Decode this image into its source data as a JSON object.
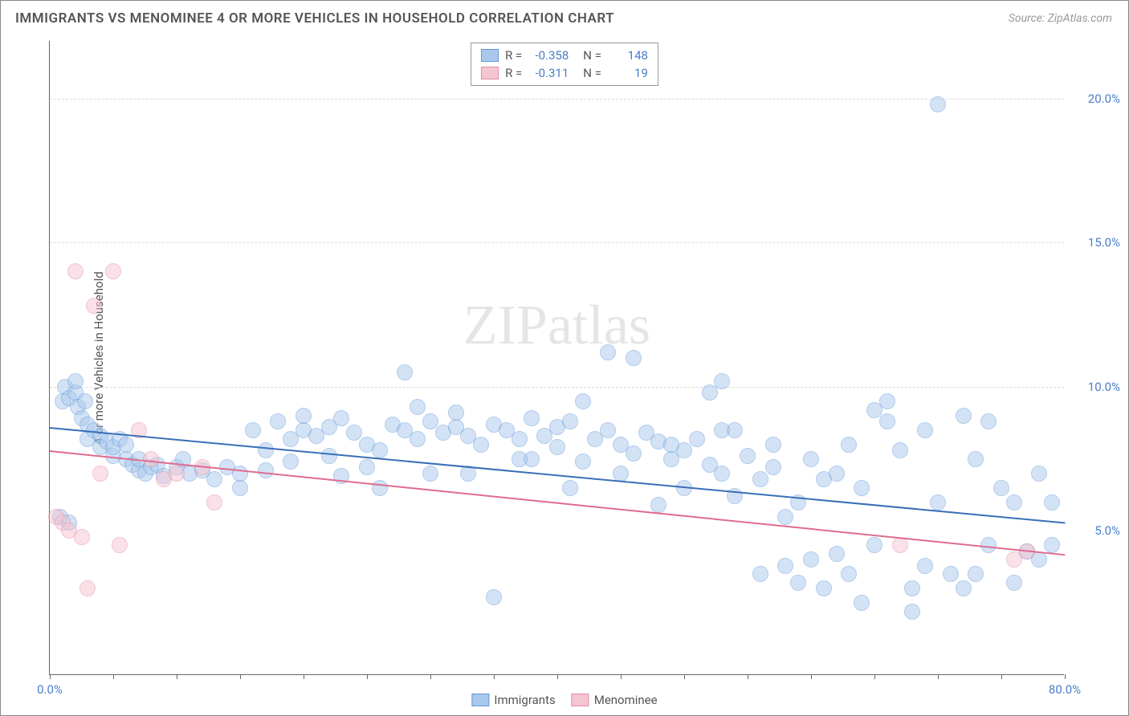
{
  "title": "IMMIGRANTS VS MENOMINEE 4 OR MORE VEHICLES IN HOUSEHOLD CORRELATION CHART",
  "source": "Source: ZipAtlas.com",
  "ylabel": "4 or more Vehicles in Household",
  "watermark": "ZIPatlas",
  "chart": {
    "type": "scatter",
    "xlim": [
      0,
      80
    ],
    "ylim": [
      0,
      22
    ],
    "background_color": "#ffffff",
    "grid_color": "#dddddd",
    "axis_color": "#666666",
    "tick_label_color": "#4a7ec9",
    "tick_fontsize": 15,
    "yticks": [
      {
        "value": 5,
        "label": "5.0%",
        "grid": false
      },
      {
        "value": 10,
        "label": "10.0%",
        "grid": true
      },
      {
        "value": 15,
        "label": "15.0%",
        "grid": true
      },
      {
        "value": 20,
        "label": "20.0%",
        "grid": true
      }
    ],
    "xticks_major": [
      0,
      40,
      80
    ],
    "xtick_labels": [
      {
        "value": 0,
        "label": "0.0%"
      },
      {
        "value": 80,
        "label": "80.0%"
      }
    ],
    "xticks_minor_step": 5,
    "marker_radius": 10,
    "marker_opacity": 0.5,
    "marker_stroke_width": 1
  },
  "series": [
    {
      "name": "Immigrants",
      "R": "-0.358",
      "N": "148",
      "fill_color": "#a8c8ec",
      "stroke_color": "#6799d8",
      "trend_color": "#3a6fb7",
      "trend": {
        "x1": 0,
        "y1": 8.6,
        "x2": 80,
        "y2": 5.3
      },
      "points": [
        [
          1,
          9.5
        ],
        [
          1.2,
          10
        ],
        [
          1.5,
          9.6
        ],
        [
          2,
          9.8
        ],
        [
          2,
          10.2
        ],
        [
          2.2,
          9.3
        ],
        [
          2.5,
          8.9
        ],
        [
          2.8,
          9.5
        ],
        [
          3,
          8.7
        ],
        [
          3,
          8.2
        ],
        [
          3.5,
          8.5
        ],
        [
          4,
          8.3
        ],
        [
          4,
          7.9
        ],
        [
          4.5,
          8.1
        ],
        [
          5,
          7.6
        ],
        [
          5,
          7.9
        ],
        [
          5.5,
          8.2
        ],
        [
          6,
          7.5
        ],
        [
          6,
          8.0
        ],
        [
          6.5,
          7.3
        ],
        [
          7,
          7.1
        ],
        [
          7,
          7.5
        ],
        [
          7.5,
          7.0
        ],
        [
          8,
          7.2
        ],
        [
          8.5,
          7.3
        ],
        [
          9,
          6.9
        ],
        [
          10,
          7.2
        ],
        [
          10.5,
          7.5
        ],
        [
          11,
          7.0
        ],
        [
          12,
          7.1
        ],
        [
          13,
          6.8
        ],
        [
          14,
          7.2
        ],
        [
          15,
          6.5
        ],
        [
          15,
          7.0
        ],
        [
          16,
          8.5
        ],
        [
          17,
          7.8
        ],
        [
          17,
          7.1
        ],
        [
          18,
          8.8
        ],
        [
          19,
          8.2
        ],
        [
          19,
          7.4
        ],
        [
          20,
          8.5
        ],
        [
          20,
          9.0
        ],
        [
          21,
          8.3
        ],
        [
          22,
          7.6
        ],
        [
          22,
          8.6
        ],
        [
          23,
          8.9
        ],
        [
          24,
          8.4
        ],
        [
          25,
          8.0
        ],
        [
          25,
          7.2
        ],
        [
          26,
          7.8
        ],
        [
          27,
          8.7
        ],
        [
          28,
          8.5
        ],
        [
          28,
          10.5
        ],
        [
          29,
          8.2
        ],
        [
          30,
          8.8
        ],
        [
          30,
          7.0
        ],
        [
          31,
          8.4
        ],
        [
          32,
          8.6
        ],
        [
          32,
          9.1
        ],
        [
          33,
          8.3
        ],
        [
          34,
          8.0
        ],
        [
          35,
          8.7
        ],
        [
          35,
          2.7
        ],
        [
          36,
          8.5
        ],
        [
          37,
          8.2
        ],
        [
          38,
          8.9
        ],
        [
          38,
          7.5
        ],
        [
          39,
          8.3
        ],
        [
          40,
          8.6
        ],
        [
          40,
          7.9
        ],
        [
          41,
          8.8
        ],
        [
          42,
          7.4
        ],
        [
          42,
          9.5
        ],
        [
          43,
          8.2
        ],
        [
          44,
          8.5
        ],
        [
          44,
          11.2
        ],
        [
          45,
          8.0
        ],
        [
          46,
          7.7
        ],
        [
          46,
          11.0
        ],
        [
          47,
          8.4
        ],
        [
          48,
          8.1
        ],
        [
          48,
          5.9
        ],
        [
          49,
          7.5
        ],
        [
          50,
          7.8
        ],
        [
          50,
          6.5
        ],
        [
          51,
          8.2
        ],
        [
          52,
          7.3
        ],
        [
          53,
          7.0
        ],
        [
          54,
          8.5
        ],
        [
          54,
          6.2
        ],
        [
          55,
          7.6
        ],
        [
          56,
          6.8
        ],
        [
          56,
          3.5
        ],
        [
          57,
          7.2
        ],
        [
          58,
          3.8
        ],
        [
          58,
          5.5
        ],
        [
          59,
          3.2
        ],
        [
          60,
          4.0
        ],
        [
          60,
          7.5
        ],
        [
          61,
          6.8
        ],
        [
          62,
          7.0
        ],
        [
          62,
          4.2
        ],
        [
          63,
          3.5
        ],
        [
          64,
          6.5
        ],
        [
          64,
          2.5
        ],
        [
          65,
          9.2
        ],
        [
          66,
          8.8
        ],
        [
          66,
          9.5
        ],
        [
          67,
          7.8
        ],
        [
          68,
          3.0
        ],
        [
          68,
          2.2
        ],
        [
          69,
          8.5
        ],
        [
          70,
          6.0
        ],
        [
          70,
          19.8
        ],
        [
          71,
          3.5
        ],
        [
          72,
          9.0
        ],
        [
          72,
          3.0
        ],
        [
          73,
          7.5
        ],
        [
          74,
          8.8
        ],
        [
          74,
          4.5
        ],
        [
          75,
          6.5
        ],
        [
          76,
          3.2
        ],
        [
          76,
          6.0
        ],
        [
          77,
          4.3
        ],
        [
          78,
          4.0
        ],
        [
          78,
          7.0
        ],
        [
          79,
          6.0
        ],
        [
          79,
          4.5
        ],
        [
          23,
          6.9
        ],
        [
          26,
          6.5
        ],
        [
          29,
          9.3
        ],
        [
          33,
          7.0
        ],
        [
          37,
          7.5
        ],
        [
          41,
          6.5
        ],
        [
          45,
          7.0
        ],
        [
          49,
          8.0
        ],
        [
          53,
          8.5
        ],
        [
          57,
          8.0
        ],
        [
          61,
          3.0
        ],
        [
          65,
          4.5
        ],
        [
          69,
          3.8
        ],
        [
          73,
          3.5
        ],
        [
          0.8,
          5.5
        ],
        [
          1.5,
          5.3
        ],
        [
          52,
          9.8
        ],
        [
          53,
          10.2
        ],
        [
          59,
          6.0
        ],
        [
          63,
          8.0
        ]
      ]
    },
    {
      "name": "Menominee",
      "R": "-0.311",
      "N": "19",
      "fill_color": "#f5c5d1",
      "stroke_color": "#e58ba5",
      "trend_color": "#e06b8f",
      "trend": {
        "x1": 0,
        "y1": 7.8,
        "x2": 80,
        "y2": 4.2
      },
      "points": [
        [
          0.5,
          5.5
        ],
        [
          1,
          5.3
        ],
        [
          1.5,
          5.0
        ],
        [
          2,
          14.0
        ],
        [
          2.5,
          4.8
        ],
        [
          3,
          3.0
        ],
        [
          3.5,
          12.8
        ],
        [
          4,
          7.0
        ],
        [
          5,
          14.0
        ],
        [
          5.5,
          4.5
        ],
        [
          7,
          8.5
        ],
        [
          8,
          7.5
        ],
        [
          9,
          6.8
        ],
        [
          10,
          7.0
        ],
        [
          12,
          7.2
        ],
        [
          13,
          6.0
        ],
        [
          67,
          4.5
        ],
        [
          76,
          4.0
        ],
        [
          77,
          4.3
        ]
      ]
    }
  ],
  "legend_bottom": [
    {
      "label": "Immigrants",
      "fill": "#a8c8ec",
      "stroke": "#6799d8"
    },
    {
      "label": "Menominee",
      "fill": "#f5c5d1",
      "stroke": "#e58ba5"
    }
  ]
}
